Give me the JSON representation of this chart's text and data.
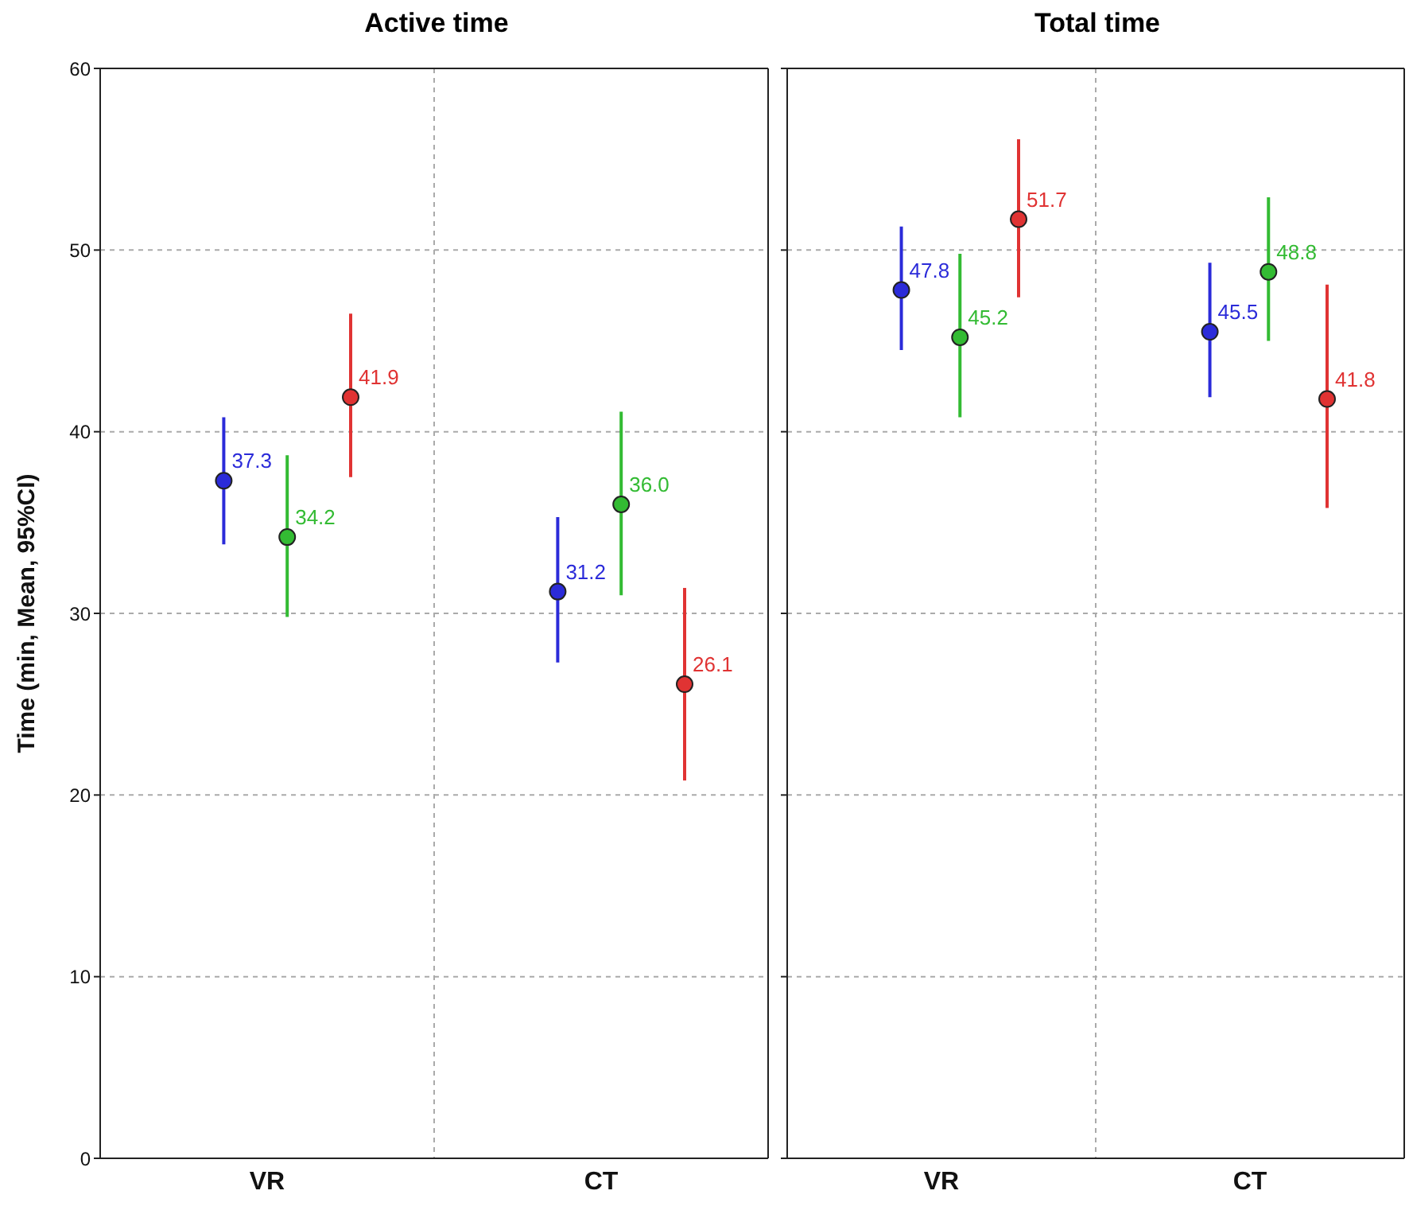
{
  "chart_data": [
    {
      "type": "scatter",
      "title": "Active time",
      "ylabel": "Time (min, Mean, 95%CI)",
      "categories": [
        "VR",
        "CT"
      ],
      "ylim": [
        0,
        60
      ],
      "yticks": [
        0,
        10,
        20,
        30,
        40,
        50,
        60
      ],
      "grid": true,
      "marker": "circle",
      "series": [
        {
          "color": "#2b2bd9",
          "values": [
            37.3,
            31.2
          ],
          "value_labels": [
            "37.3",
            "31.2"
          ],
          "errors": [
            [
              33.8,
              40.8
            ],
            [
              27.3,
              35.3
            ]
          ]
        },
        {
          "color": "#33bb33",
          "values": [
            34.2,
            36.0
          ],
          "value_labels": [
            "34.2",
            "36.0"
          ],
          "errors": [
            [
              29.8,
              38.7
            ],
            [
              31.0,
              41.1
            ]
          ]
        },
        {
          "color": "#e03333",
          "values": [
            41.9,
            26.1
          ],
          "value_labels": [
            "41.9",
            "26.1"
          ],
          "errors": [
            [
              37.5,
              46.5
            ],
            [
              20.8,
              31.4
            ]
          ]
        }
      ]
    },
    {
      "type": "scatter",
      "title": "Total time",
      "categories": [
        "VR",
        "CT"
      ],
      "ylim": [
        0,
        60
      ],
      "yticks": [
        0,
        10,
        20,
        30,
        40,
        50,
        60
      ],
      "tick_labels": "x",
      "grid": true,
      "marker": "circle",
      "series": [
        {
          "color": "#2b2bd9",
          "values": [
            47.8,
            45.5
          ],
          "value_labels": [
            "47.8",
            "45.5"
          ],
          "errors": [
            [
              44.5,
              51.3
            ],
            [
              41.9,
              49.3
            ]
          ]
        },
        {
          "color": "#33bb33",
          "values": [
            45.2,
            48.8
          ],
          "value_labels": [
            "45.2",
            "48.8"
          ],
          "errors": [
            [
              40.8,
              49.8
            ],
            [
              45.0,
              52.9
            ]
          ]
        },
        {
          "color": "#e03333",
          "values": [
            51.7,
            41.8
          ],
          "value_labels": [
            "51.7",
            "41.8"
          ],
          "errors": [
            [
              47.4,
              56.1
            ],
            [
              35.8,
              48.1
            ]
          ]
        }
      ]
    }
  ]
}
